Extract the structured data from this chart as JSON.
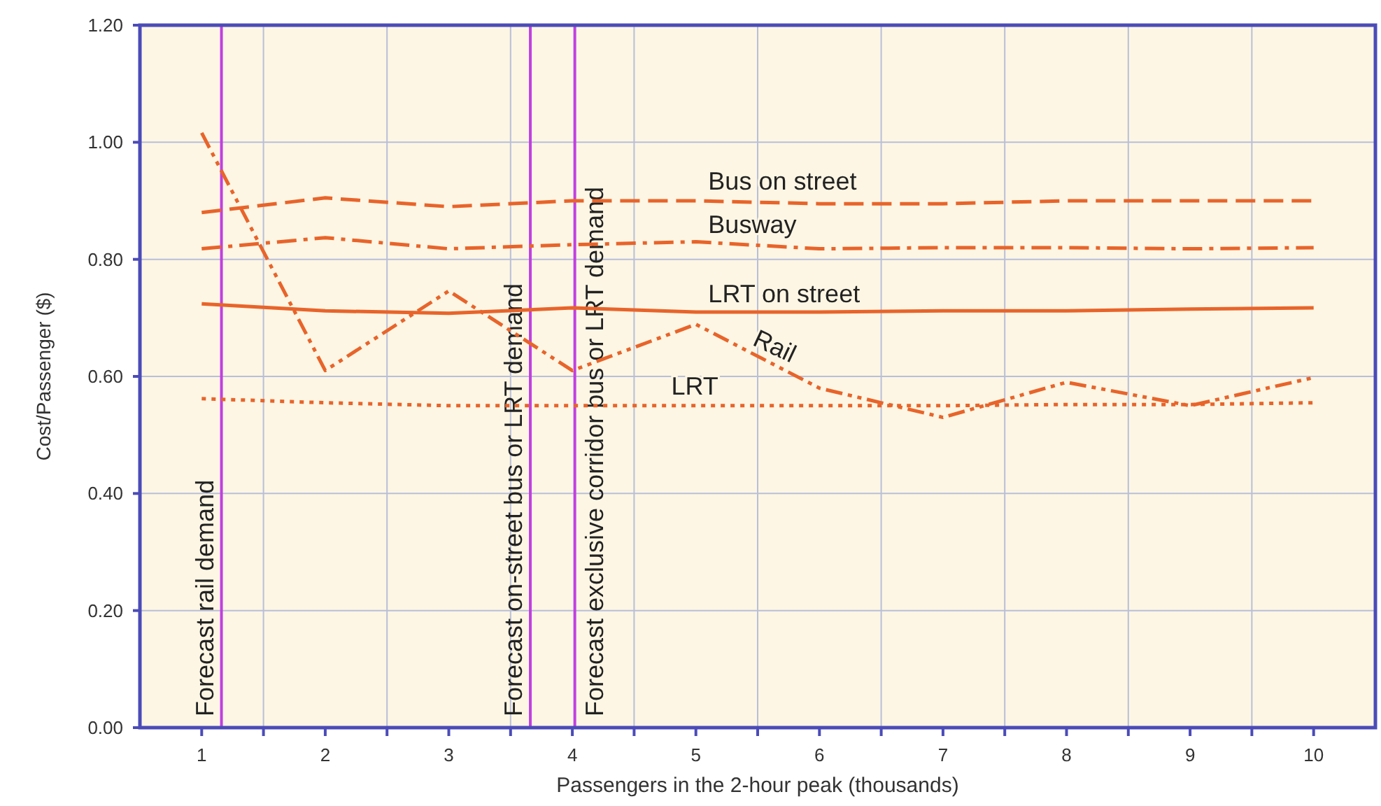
{
  "chart_data": {
    "type": "line",
    "xlabel": "Passengers in the 2-hour peak (thousands)",
    "ylabel": "Cost/Passenger ($)",
    "x": [
      1,
      2,
      3,
      4,
      5,
      6,
      7,
      8,
      9,
      10
    ],
    "series": [
      {
        "name": "Bus on street",
        "color": "#e8642a",
        "line_style": "dashed",
        "values": [
          0.88,
          0.905,
          0.89,
          0.9,
          0.9,
          0.895,
          0.895,
          0.9,
          0.9,
          0.9
        ]
      },
      {
        "name": "Busway",
        "color": "#e8642a",
        "line_style": "dashdot",
        "values": [
          0.818,
          0.837,
          0.818,
          0.825,
          0.83,
          0.818,
          0.82,
          0.82,
          0.818,
          0.82
        ]
      },
      {
        "name": "LRT on street",
        "color": "#e8642a",
        "line_style": "solid",
        "values": [
          0.724,
          0.712,
          0.708,
          0.717,
          0.71,
          0.71,
          0.712,
          0.712,
          0.715,
          0.717
        ]
      },
      {
        "name": "Rail",
        "color": "#e8642a",
        "line_style": "dashdotdot",
        "values": [
          1.016,
          0.61,
          0.746,
          0.61,
          0.689,
          0.58,
          0.53,
          0.59,
          0.55,
          0.598
        ]
      },
      {
        "name": "LRT",
        "color": "#e8642a",
        "line_style": "dotted",
        "values": [
          0.562,
          0.555,
          0.55,
          0.55,
          0.55,
          0.55,
          0.55,
          0.552,
          0.552,
          0.555
        ]
      }
    ],
    "xlim": [
      0.5,
      10.5
    ],
    "xticks": [
      1,
      {
        "value": 1.5,
        "label": null
      },
      2,
      {
        "value": 2.5,
        "label": null
      },
      3,
      {
        "value": 3.5,
        "label": null
      },
      4,
      {
        "value": 4.5,
        "label": null
      },
      5,
      {
        "value": 5.5,
        "label": null
      },
      6,
      {
        "value": 6.5,
        "label": null
      },
      7,
      {
        "value": 7.5,
        "label": null
      },
      8,
      {
        "value": 8.5,
        "label": null
      },
      9,
      {
        "value": 9.5,
        "label": null
      },
      10
    ],
    "ylim": [
      0,
      1.2
    ],
    "yticks": [
      {
        "value": 0,
        "label": "0.00"
      },
      {
        "value": 0.2,
        "label": "0.20"
      },
      {
        "value": 0.4,
        "label": "0.40"
      },
      {
        "value": 0.6,
        "label": "0.60"
      },
      {
        "value": 0.8,
        "label": "0.80"
      },
      {
        "value": 1,
        "label": "1.00"
      },
      {
        "value": 1.2,
        "label": "1.20"
      }
    ],
    "grid": true,
    "ref_lines": [
      {
        "axis": "x",
        "value": 1.16,
        "label": "Forecast rail demand",
        "color": "#c040e0"
      },
      {
        "axis": "x",
        "value": 3.66,
        "label": "Forecast on-street bus or LRT demand",
        "color": "#c040e0"
      },
      {
        "axis": "x",
        "value": 4.02,
        "label": "Forecast exclusive corridor bus or LRT demand",
        "color": "#c040e0"
      }
    ]
  }
}
